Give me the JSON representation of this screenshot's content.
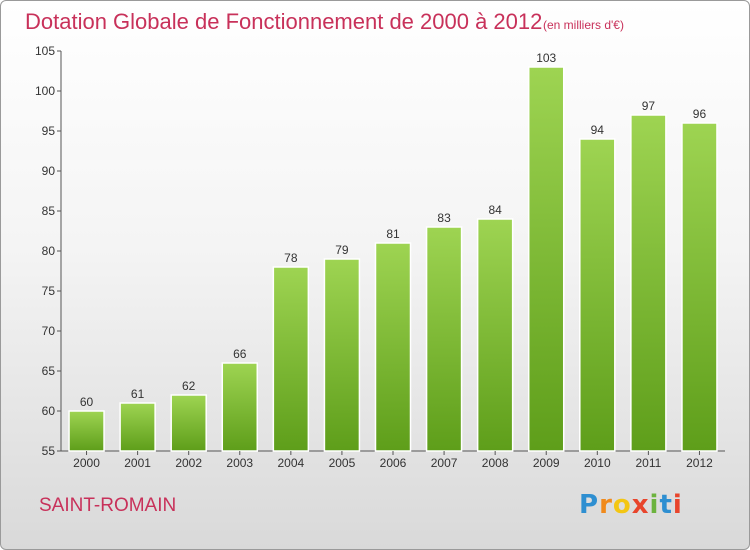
{
  "title": "Dotation Globale de Fonctionnement de 2000 à 2012",
  "subtitle": "(en milliers d'€)",
  "town": "SAINT-ROMAIN",
  "logo": {
    "letters": [
      "P",
      "r",
      "o",
      "x",
      "i",
      "t",
      "i"
    ],
    "colors": [
      "#2e8fd1",
      "#f08a1c",
      "#f3c613",
      "#e8452c",
      "#6cb33e",
      "#2e8fd1",
      "#e8452c"
    ]
  },
  "chart_data": {
    "type": "bar",
    "title": "Dotation Globale de Fonctionnement de 2000 à 2012",
    "subtitle": "(en milliers d'€)",
    "xlabel": "",
    "ylabel": "",
    "categories": [
      "2000",
      "2001",
      "2002",
      "2003",
      "2004",
      "2005",
      "2006",
      "2007",
      "2008",
      "2009",
      "2010",
      "2011",
      "2012"
    ],
    "values": [
      60,
      61,
      62,
      66,
      78,
      79,
      81,
      83,
      84,
      103,
      94,
      97,
      96
    ],
    "ylim": [
      55,
      105
    ],
    "yticks": [
      55,
      60,
      65,
      70,
      75,
      80,
      85,
      90,
      95,
      100,
      105
    ],
    "grid": false,
    "data_labels": true,
    "bar_color_top": "#9ed452",
    "bar_color_bottom": "#5e9e1a"
  }
}
